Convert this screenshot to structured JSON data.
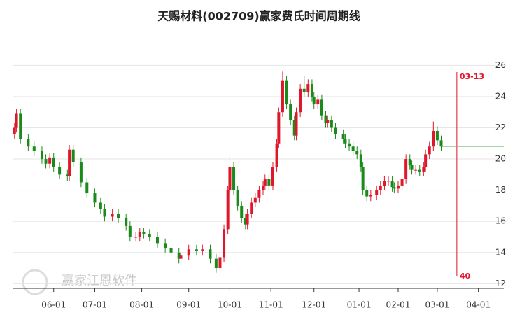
{
  "chart_data": {
    "type": "candlestick",
    "title": "天赐材料(002709)赢家费氏时间周期线",
    "watermark": "赢家江恩软件",
    "up_color": "#e0162b",
    "down_color": "#1a8a1a",
    "xlim": [
      0,
      251
    ],
    "ylim": [
      11.7,
      26.6
    ],
    "yticks": [
      12,
      14,
      16,
      18,
      20,
      22,
      24,
      26
    ],
    "xticks": [
      {
        "value": 21,
        "label": "06-01"
      },
      {
        "value": 42,
        "label": "07-01"
      },
      {
        "value": 66,
        "label": "08-01"
      },
      {
        "value": 90,
        "label": "09-01"
      },
      {
        "value": 111,
        "label": "10-01"
      },
      {
        "value": 132,
        "label": "11-01"
      },
      {
        "value": 154,
        "label": "12-01"
      },
      {
        "value": 177,
        "label": "01-01"
      },
      {
        "value": 197,
        "label": "02-01"
      },
      {
        "value": 217,
        "label": "03-01"
      },
      {
        "value": 238,
        "label": "04-01"
      }
    ],
    "grid": true,
    "x": [
      1,
      2,
      4,
      8,
      11,
      15,
      17,
      19,
      21,
      24,
      28,
      29,
      31,
      35,
      38,
      42,
      45,
      47,
      51,
      54,
      58,
      60,
      63,
      65,
      67,
      70,
      74,
      78,
      81,
      85,
      86,
      90,
      94,
      97,
      101,
      104,
      106,
      108,
      110,
      111,
      113,
      115,
      117,
      119,
      120,
      122,
      124,
      126,
      128,
      129,
      131,
      133,
      135,
      136,
      138,
      140,
      142,
      144,
      145,
      147,
      149,
      151,
      153,
      154,
      156,
      158,
      160,
      161,
      163,
      165,
      169,
      170,
      172,
      174,
      176,
      178,
      179,
      181,
      183,
      186,
      188,
      190,
      192,
      194,
      195,
      197,
      199,
      201,
      203,
      204,
      206,
      208,
      210,
      211,
      213,
      215,
      217,
      219
    ],
    "open": [
      21.6,
      22.0,
      22.9,
      21.3,
      20.8,
      20.5,
      20.0,
      19.7,
      20.1,
      19.5,
      19.0,
      18.9,
      20.6,
      19.8,
      18.5,
      17.8,
      17.2,
      16.8,
      16.3,
      16.5,
      16.2,
      15.7,
      15.0,
      15.0,
      15.3,
      15.2,
      15.0,
      14.6,
      14.3,
      14.0,
      13.6,
      13.8,
      14.2,
      14.1,
      14.2,
      13.6,
      13.0,
      13.7,
      15.5,
      18.0,
      19.5,
      18.0,
      17.0,
      16.2,
      15.8,
      16.5,
      17.2,
      17.5,
      18.0,
      18.3,
      18.7,
      18.3,
      19.5,
      21.0,
      23.0,
      25.0,
      23.5,
      22.5,
      21.5,
      23.0,
      24.5,
      24.3,
      24.8,
      24.0,
      23.5,
      23.8,
      22.8,
      22.3,
      22.5,
      22.0,
      21.6,
      21.3,
      21.0,
      20.8,
      20.5,
      20.3,
      19.5,
      18.0,
      17.6,
      17.7,
      18.0,
      18.3,
      18.6,
      18.6,
      18.2,
      18.1,
      18.3,
      18.7,
      20.0,
      19.6,
      19.3,
      19.3,
      19.2,
      19.5,
      20.3,
      20.8,
      21.8,
      21.2
    ],
    "high": [
      22.3,
      23.2,
      23.2,
      21.6,
      21.1,
      20.8,
      20.3,
      20.4,
      20.4,
      19.8,
      19.3,
      20.9,
      20.9,
      20.1,
      18.8,
      18.1,
      17.5,
      17.1,
      16.8,
      16.8,
      16.5,
      16.0,
      15.3,
      15.6,
      15.6,
      15.5,
      15.3,
      14.9,
      14.6,
      14.3,
      14.1,
      14.5,
      14.5,
      14.5,
      14.5,
      13.9,
      14.0,
      15.8,
      18.3,
      20.3,
      19.8,
      18.3,
      17.3,
      16.5,
      16.8,
      17.5,
      17.8,
      18.3,
      18.6,
      19.0,
      19.0,
      19.8,
      21.3,
      23.3,
      25.6,
      25.3,
      23.8,
      22.8,
      23.3,
      24.8,
      25.3,
      25.1,
      25.1,
      24.3,
      24.1,
      24.1,
      23.1,
      22.8,
      22.8,
      22.3,
      21.9,
      21.6,
      21.3,
      21.1,
      20.8,
      20.6,
      19.8,
      18.3,
      18.0,
      18.3,
      18.6,
      18.9,
      18.9,
      18.9,
      18.5,
      18.6,
      19.0,
      20.3,
      20.3,
      19.9,
      19.6,
      19.6,
      19.8,
      20.6,
      21.1,
      22.4,
      22.1,
      21.5
    ],
    "low": [
      21.3,
      21.7,
      21.0,
      20.5,
      20.2,
      19.7,
      19.4,
      19.4,
      19.2,
      18.7,
      18.6,
      18.6,
      19.5,
      18.2,
      17.5,
      16.9,
      16.5,
      16.0,
      16.0,
      15.9,
      15.4,
      14.7,
      14.7,
      14.7,
      14.9,
      14.7,
      14.3,
      14.0,
      13.7,
      13.3,
      13.3,
      13.5,
      13.8,
      13.8,
      13.3,
      12.7,
      12.7,
      13.4,
      15.2,
      17.7,
      17.7,
      16.7,
      15.9,
      15.5,
      15.5,
      16.2,
      16.9,
      17.2,
      17.7,
      18.0,
      18.0,
      18.0,
      19.2,
      20.7,
      22.7,
      23.2,
      22.2,
      21.2,
      21.2,
      22.7,
      24.0,
      24.0,
      23.7,
      23.2,
      23.2,
      22.5,
      22.0,
      22.0,
      21.7,
      21.3,
      21.0,
      20.7,
      20.5,
      20.2,
      20.0,
      19.2,
      17.7,
      17.3,
      17.3,
      17.4,
      17.7,
      18.0,
      18.3,
      17.9,
      17.8,
      17.8,
      18.0,
      18.4,
      19.3,
      19.0,
      19.0,
      18.9,
      18.9,
      19.2,
      20.0,
      20.5,
      20.9,
      20.5
    ],
    "close": [
      22.0,
      22.9,
      21.3,
      20.8,
      20.5,
      20.0,
      19.7,
      20.1,
      19.5,
      19.0,
      18.9,
      20.6,
      19.8,
      18.5,
      17.8,
      17.2,
      16.8,
      16.3,
      16.5,
      16.2,
      15.7,
      15.0,
      15.0,
      15.3,
      15.2,
      15.0,
      14.6,
      14.3,
      14.0,
      13.6,
      13.8,
      14.2,
      14.1,
      14.2,
      13.6,
      13.0,
      13.7,
      15.5,
      18.0,
      19.5,
      18.0,
      17.0,
      16.2,
      15.8,
      16.5,
      17.2,
      17.5,
      18.0,
      18.3,
      18.7,
      18.3,
      19.5,
      21.0,
      23.0,
      25.0,
      23.5,
      22.5,
      21.5,
      23.0,
      24.5,
      24.3,
      24.8,
      24.0,
      23.5,
      23.8,
      22.8,
      22.3,
      22.5,
      22.0,
      21.6,
      21.3,
      21.0,
      20.8,
      20.5,
      20.3,
      19.5,
      18.0,
      17.6,
      17.7,
      18.0,
      18.3,
      18.6,
      18.6,
      18.2,
      18.1,
      18.3,
      18.7,
      20.0,
      19.6,
      19.3,
      19.3,
      19.2,
      19.5,
      20.3,
      20.8,
      21.8,
      21.2,
      20.8
    ],
    "projection_level": 20.8,
    "marker": {
      "x": 227,
      "label": "03-13",
      "value": 40,
      "color": "#e0162b"
    }
  }
}
